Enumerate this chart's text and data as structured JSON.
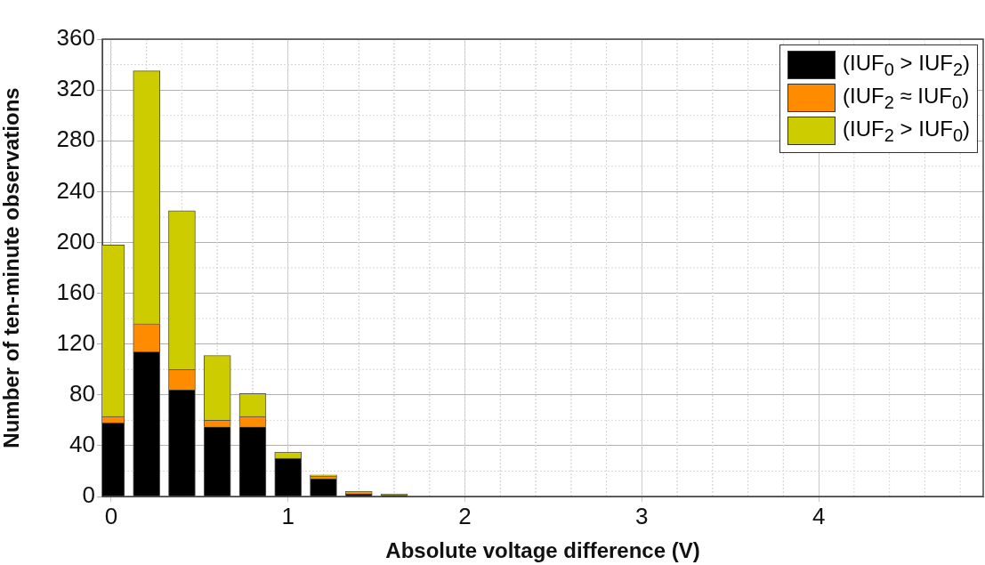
{
  "chart_data": {
    "type": "bar",
    "stacked": true,
    "xlabel": "Absolute voltage difference (V)",
    "ylabel": "Number of ten-minute observations",
    "x": [
      0,
      0.2,
      0.4,
      0.6,
      0.8,
      1.0,
      1.2,
      1.4,
      1.6
    ],
    "series": [
      {
        "name": "(IUF$_{0}$ > IUF$_{2}$)",
        "color": "#000000",
        "values": [
          58,
          114,
          84,
          55,
          55,
          30,
          14,
          2,
          1
        ]
      },
      {
        "name": "(IUF$_{2}$ ≈ IUF$_{0}$)",
        "color": "#ff8c00",
        "values": [
          5,
          22,
          16,
          5,
          8,
          0,
          2,
          1,
          0
        ]
      },
      {
        "name": "(IUF$_{2}$ > IUF$_{0}$)",
        "color": "#cccc00",
        "values": [
          135,
          199,
          125,
          51,
          18,
          5,
          1,
          1,
          1
        ]
      }
    ],
    "xlim": [
      -0.05,
      4.93
    ],
    "xticks": [
      0,
      1,
      2,
      3,
      4
    ],
    "ylim": [
      0,
      360
    ],
    "yticks": [
      0,
      40,
      80,
      120,
      160,
      200,
      240,
      280,
      320,
      360
    ],
    "grid": true,
    "legend": "top right"
  }
}
